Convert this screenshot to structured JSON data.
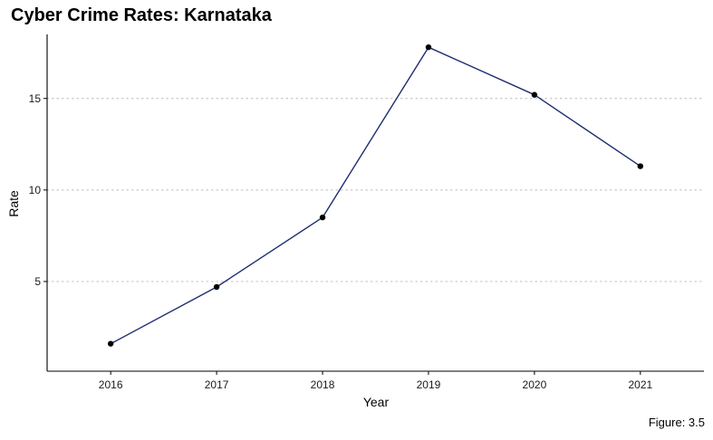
{
  "title": "Cyber Crime Rates: Karnataka",
  "caption": "Figure: 3.5",
  "colors": {
    "line": "#1f2d6e",
    "point": "#000000",
    "grid": "#c8c8c8",
    "axis": "#000000"
  },
  "chart_data": {
    "type": "line",
    "title": "Cyber Crime Rates: Karnataka",
    "xlabel": "Year",
    "ylabel": "Rate",
    "x": [
      2016,
      2017,
      2018,
      2019,
      2020,
      2021
    ],
    "series": [
      {
        "values": [
          1.6,
          4.7,
          8.5,
          17.8,
          15.2,
          11.3
        ]
      }
    ],
    "xlim": [
      2015.4,
      2021.6
    ],
    "ylim": [
      0.1,
      18.5
    ],
    "y_ticks": [
      5,
      10,
      15
    ],
    "x_tick_labels": [
      "2016",
      "2017",
      "2018",
      "2019",
      "2020",
      "2021"
    ],
    "y_tick_labels": [
      "5",
      "10",
      "15"
    ],
    "grid": "horizontal dotted",
    "legend": "none"
  }
}
